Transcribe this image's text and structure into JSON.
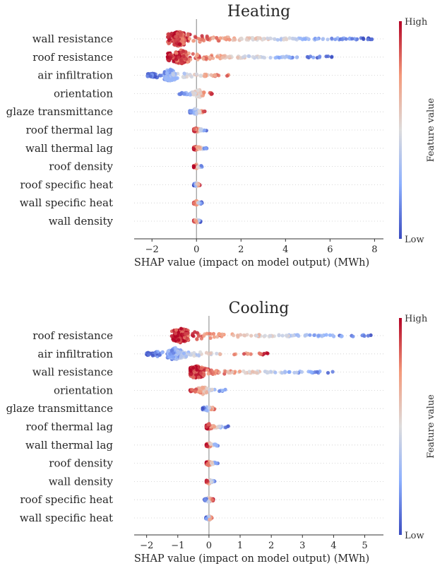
{
  "chart_data": [
    {
      "type": "scatter",
      "subtype": "shap-beeswarm",
      "title": "Heating",
      "xlabel": "SHAP value (impact on model output) (MWh)",
      "xlim": [
        -2.8,
        8.4
      ],
      "xticks": [
        -2,
        0,
        2,
        4,
        6,
        8
      ],
      "zero_line": 0,
      "grid": "dotted horizontal row guides",
      "features": [
        {
          "name": "wall resistance",
          "min": -1.3,
          "max": 7.9,
          "high_side": "left",
          "hub": -0.8,
          "width": 1.0
        },
        {
          "name": "roof resistance",
          "min": -1.3,
          "max": 6.1,
          "high_side": "left",
          "hub": -0.7,
          "width": 0.95
        },
        {
          "name": "air infiltration",
          "min": -2.2,
          "max": 1.9,
          "high_side": "right",
          "hub": -1.2,
          "width": 0.9
        },
        {
          "name": "orientation",
          "min": -0.8,
          "max": 0.7,
          "high_side": "right",
          "hub": 0.1,
          "width": 0.6
        },
        {
          "name": "glaze transmittance",
          "min": -0.3,
          "max": 0.4,
          "high_side": "right",
          "hub": -0.05,
          "width": 0.45
        },
        {
          "name": "roof thermal lag",
          "min": -0.12,
          "max": 0.45,
          "high_side": "left",
          "hub": 0.0,
          "width": 0.35
        },
        {
          "name": "wall thermal lag",
          "min": -0.12,
          "max": 0.5,
          "high_side": "left",
          "hub": 0.0,
          "width": 0.35
        },
        {
          "name": "roof density",
          "min": -0.12,
          "max": 0.25,
          "high_side": "left",
          "hub": 0.0,
          "width": 0.3
        },
        {
          "name": "roof specific heat",
          "min": -0.12,
          "max": 0.15,
          "high_side": "right",
          "hub": 0.0,
          "width": 0.3
        },
        {
          "name": "wall specific heat",
          "min": -0.12,
          "max": 0.25,
          "high_side": "left",
          "hub": 0.0,
          "width": 0.3
        },
        {
          "name": "wall density",
          "min": -0.12,
          "max": 0.2,
          "high_side": "left",
          "hub": 0.0,
          "width": 0.3
        }
      ],
      "colorbar": {
        "label": "Feature value",
        "high": "High",
        "low": "Low"
      }
    },
    {
      "type": "scatter",
      "subtype": "shap-beeswarm",
      "title": "Cooling",
      "xlabel": "SHAP value (impact on model output) (MWh)",
      "xlim": [
        -2.4,
        5.6
      ],
      "xticks": [
        -2,
        -1,
        0,
        1,
        2,
        3,
        4,
        5
      ],
      "zero_line": 0,
      "grid": "dotted horizontal row guides",
      "features": [
        {
          "name": "roof resistance",
          "min": -1.2,
          "max": 5.2,
          "high_side": "left",
          "hub": -0.9,
          "width": 1.0
        },
        {
          "name": "air infiltration",
          "min": -2.0,
          "max": 1.9,
          "high_side": "right",
          "hub": -1.1,
          "width": 0.9
        },
        {
          "name": "wall resistance",
          "min": -0.6,
          "max": 4.1,
          "high_side": "left",
          "hub": -0.4,
          "width": 0.85
        },
        {
          "name": "orientation",
          "min": -0.6,
          "max": 0.6,
          "high_side": "left",
          "hub": -0.2,
          "width": 0.6
        },
        {
          "name": "glaze transmittance",
          "min": -0.2,
          "max": 0.2,
          "high_side": "right",
          "hub": -0.05,
          "width": 0.5
        },
        {
          "name": "roof thermal lag",
          "min": -0.08,
          "max": 0.65,
          "high_side": "left",
          "hub": 0.0,
          "width": 0.35
        },
        {
          "name": "wall thermal lag",
          "min": -0.08,
          "max": 0.3,
          "high_side": "left",
          "hub": 0.0,
          "width": 0.3
        },
        {
          "name": "roof density",
          "min": -0.08,
          "max": 0.3,
          "high_side": "left",
          "hub": 0.0,
          "width": 0.3
        },
        {
          "name": "wall density",
          "min": -0.08,
          "max": 0.2,
          "high_side": "left",
          "hub": 0.0,
          "width": 0.3
        },
        {
          "name": "roof specific heat",
          "min": -0.15,
          "max": 0.15,
          "high_side": "right",
          "hub": 0.0,
          "width": 0.3
        },
        {
          "name": "wall specific heat",
          "min": -0.1,
          "max": 0.1,
          "high_side": "right",
          "hub": 0.0,
          "width": 0.3
        }
      ],
      "colorbar": {
        "label": "Feature value",
        "high": "High",
        "low": "Low"
      }
    }
  ],
  "colors": {
    "low": "#3b4cc0",
    "mid": "#dddcdc",
    "high": "#b40426",
    "zero_line": "#999999",
    "axis": "#333333",
    "text": "#262626"
  }
}
